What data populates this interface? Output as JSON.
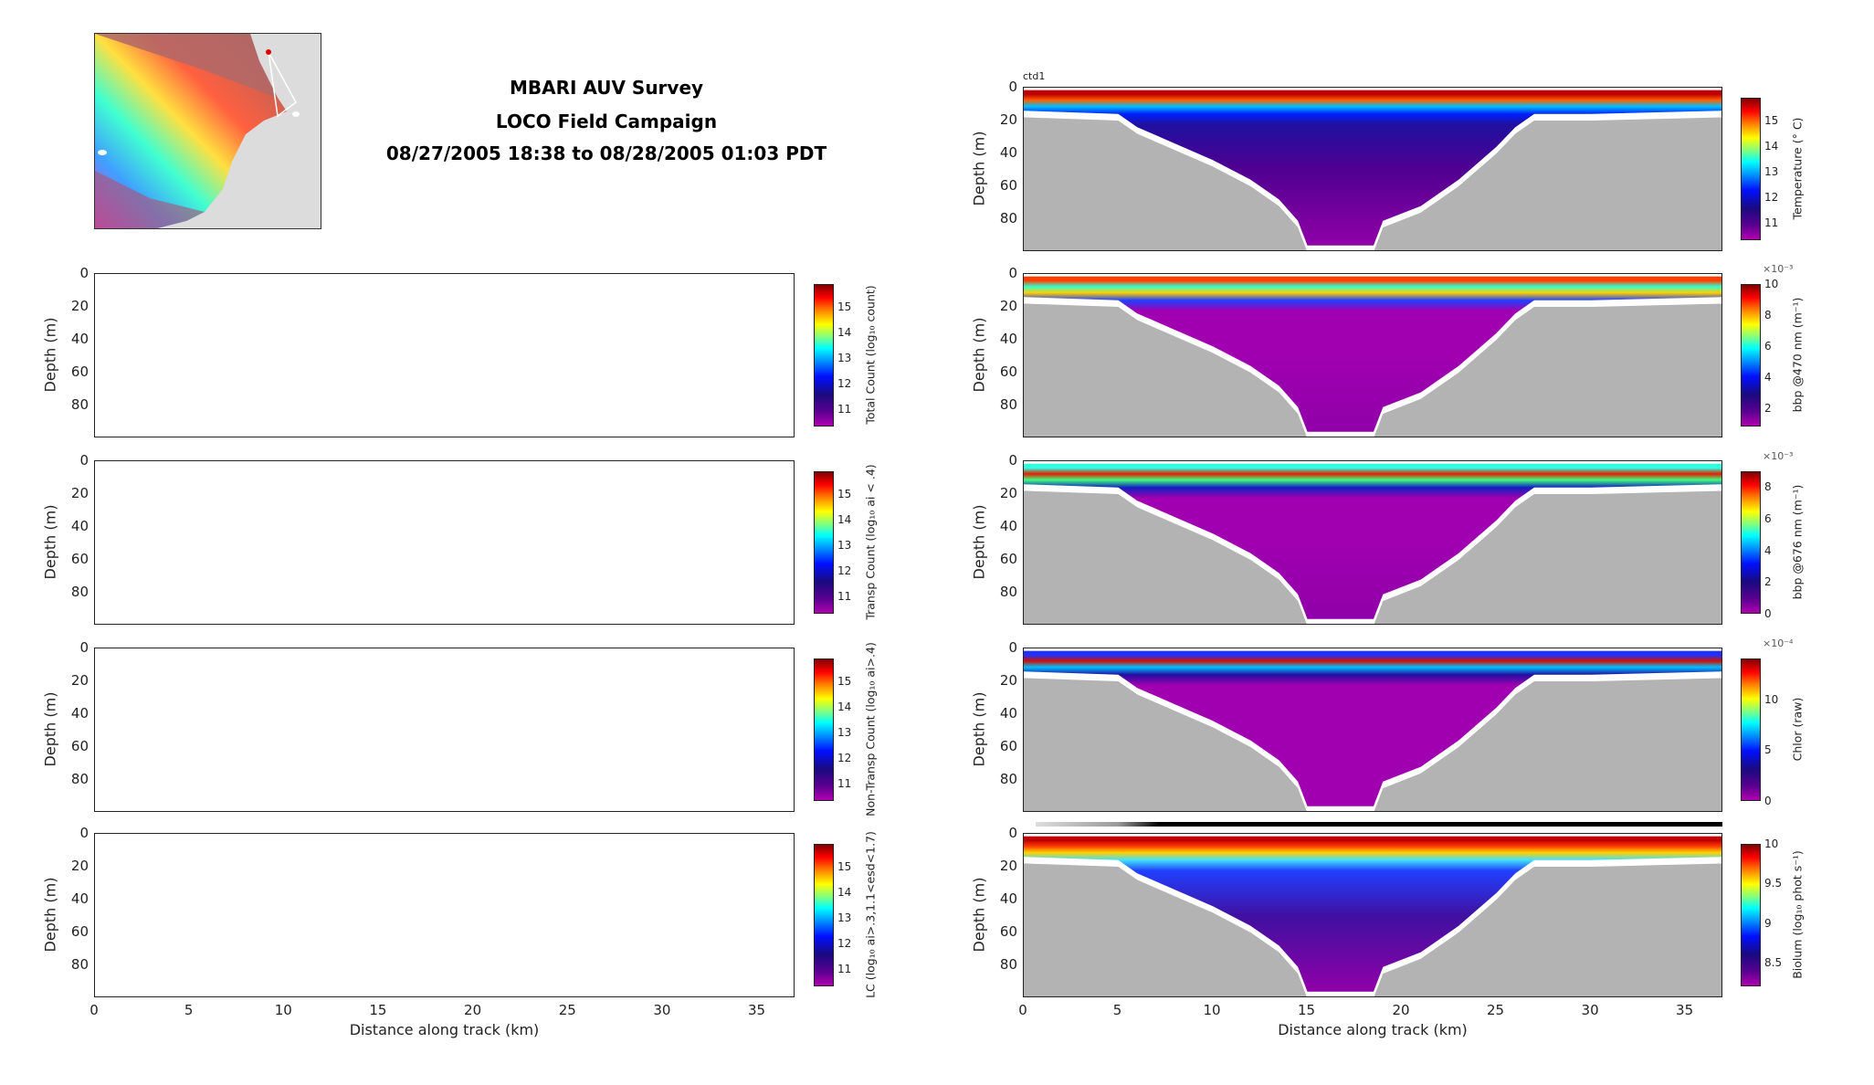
{
  "header": {
    "title_line1": "MBARI AUV Survey",
    "title_line2": "LOCO Field Campaign",
    "title_line3": "08/27/2005 18:38 to 08/28/2005 01:03 PDT",
    "ctd_label": "ctd1"
  },
  "axes_text": {
    "ylabel": "Depth (m)",
    "xlabel": "Distance along track (km)",
    "yticks": [
      "0",
      "20",
      "40",
      "60",
      "80"
    ],
    "xticks": [
      "0",
      "5",
      "10",
      "15",
      "20",
      "25",
      "30",
      "35"
    ]
  },
  "colors": {
    "seafloor": "#b3b3b3",
    "jet_low": "#b000b0",
    "jet_high": "#800000"
  },
  "chart_data": {
    "type": "heatmap",
    "xlim": [
      0,
      37
    ],
    "ylim": [
      100,
      0
    ],
    "xtick_values": [
      0,
      5,
      10,
      15,
      20,
      25,
      30,
      35
    ],
    "ytick_values": [
      0,
      20,
      40,
      60,
      80
    ],
    "seafloor_profile": {
      "distance_km": [
        0,
        5,
        6,
        8,
        10,
        12,
        13.5,
        14.5,
        15,
        18.5,
        19,
        21,
        23,
        25,
        26,
        27,
        30,
        37
      ],
      "depth_m": [
        18,
        20,
        28,
        38,
        48,
        60,
        72,
        85,
        100,
        100,
        85,
        76,
        60,
        40,
        28,
        20,
        20,
        18
      ]
    },
    "left_panels": [
      {
        "colorbar_label": "Total Count (log₁₀ count)",
        "cticks": [
          "11",
          "12",
          "13",
          "14",
          "15"
        ],
        "ctick_values": [
          11,
          12,
          13,
          14,
          15
        ],
        "crange": [
          10.3,
          15.9
        ]
      },
      {
        "colorbar_label": "Transp Count (log₁₀ ai < .4)",
        "cticks": [
          "11",
          "12",
          "13",
          "14",
          "15"
        ],
        "ctick_values": [
          11,
          12,
          13,
          14,
          15
        ],
        "crange": [
          10.3,
          15.9
        ]
      },
      {
        "colorbar_label": "Non-Transp Count (log₁₀ ai>.4)",
        "cticks": [
          "11",
          "12",
          "13",
          "14",
          "15"
        ],
        "ctick_values": [
          11,
          12,
          13,
          14,
          15
        ],
        "crange": [
          10.3,
          15.9
        ]
      },
      {
        "colorbar_label": "LC (log₁₀ ai>.3,1.1<esd<1.7)",
        "cticks": [
          "11",
          "12",
          "13",
          "14",
          "15"
        ],
        "ctick_values": [
          11,
          12,
          13,
          14,
          15
        ],
        "crange": [
          10.3,
          15.9
        ]
      }
    ],
    "right_panels": [
      {
        "colorbar_label": "Temperature (° C)",
        "cticks": [
          "11",
          "12",
          "13",
          "14",
          "15"
        ],
        "ctick_values": [
          11,
          12,
          13,
          14,
          15
        ],
        "crange": [
          10.3,
          15.9
        ],
        "exponent": "",
        "surface": [
          "#c00000",
          "#ff6000",
          "#00c0ff",
          "#0020ff"
        ],
        "interior": [
          "#2010a0",
          "#500090",
          "#9000a8"
        ]
      },
      {
        "colorbar_label": "bbp @470 nm (m⁻¹)",
        "cticks": [
          "2",
          "4",
          "6",
          "8",
          "10"
        ],
        "ctick_values": [
          2,
          4,
          6,
          8,
          10
        ],
        "crange": [
          0.8,
          10
        ],
        "exponent": "×10⁻³",
        "surface": [
          "#ff4000",
          "#30ffd0",
          "#ffd000",
          "#2040ff"
        ],
        "interior": [
          "#a000b0",
          "#a000b0",
          "#9000a8"
        ]
      },
      {
        "colorbar_label": "bbp @676 nm (m⁻¹)",
        "cticks": [
          "0",
          "2",
          "4",
          "6",
          "8"
        ],
        "ctick_values": [
          0,
          2,
          4,
          6,
          8
        ],
        "crange": [
          0,
          9
        ],
        "exponent": "×10⁻³",
        "surface": [
          "#30ffe0",
          "#e02000",
          "#40ff80",
          "#1020c0"
        ],
        "interior": [
          "#a000b0",
          "#a000b0",
          "#9000a8"
        ]
      },
      {
        "colorbar_label": "Chlor (raw)",
        "cticks": [
          "0",
          "5",
          "10"
        ],
        "ctick_values": [
          0,
          5,
          10
        ],
        "crange": [
          0,
          14
        ],
        "exponent": "×10⁻⁴",
        "surface": [
          "#2030ff",
          "#d01000",
          "#00c0ff",
          "#2010a0"
        ],
        "interior": [
          "#a000b0",
          "#a000b0",
          "#a000b0"
        ]
      },
      {
        "colorbar_label": "Biolum (log₁₀ phot s⁻¹)",
        "cticks": [
          "8.5",
          "9",
          "9.5",
          "10"
        ],
        "ctick_values": [
          8.5,
          9,
          9.5,
          10
        ],
        "crange": [
          8.2,
          10
        ],
        "exponent": "",
        "surface": [
          "#c00000",
          "#ff4000",
          "#ffd000",
          "#40e0ff"
        ],
        "interior": [
          "#2040ff",
          "#4010a0",
          "#9000a8"
        ]
      }
    ]
  }
}
